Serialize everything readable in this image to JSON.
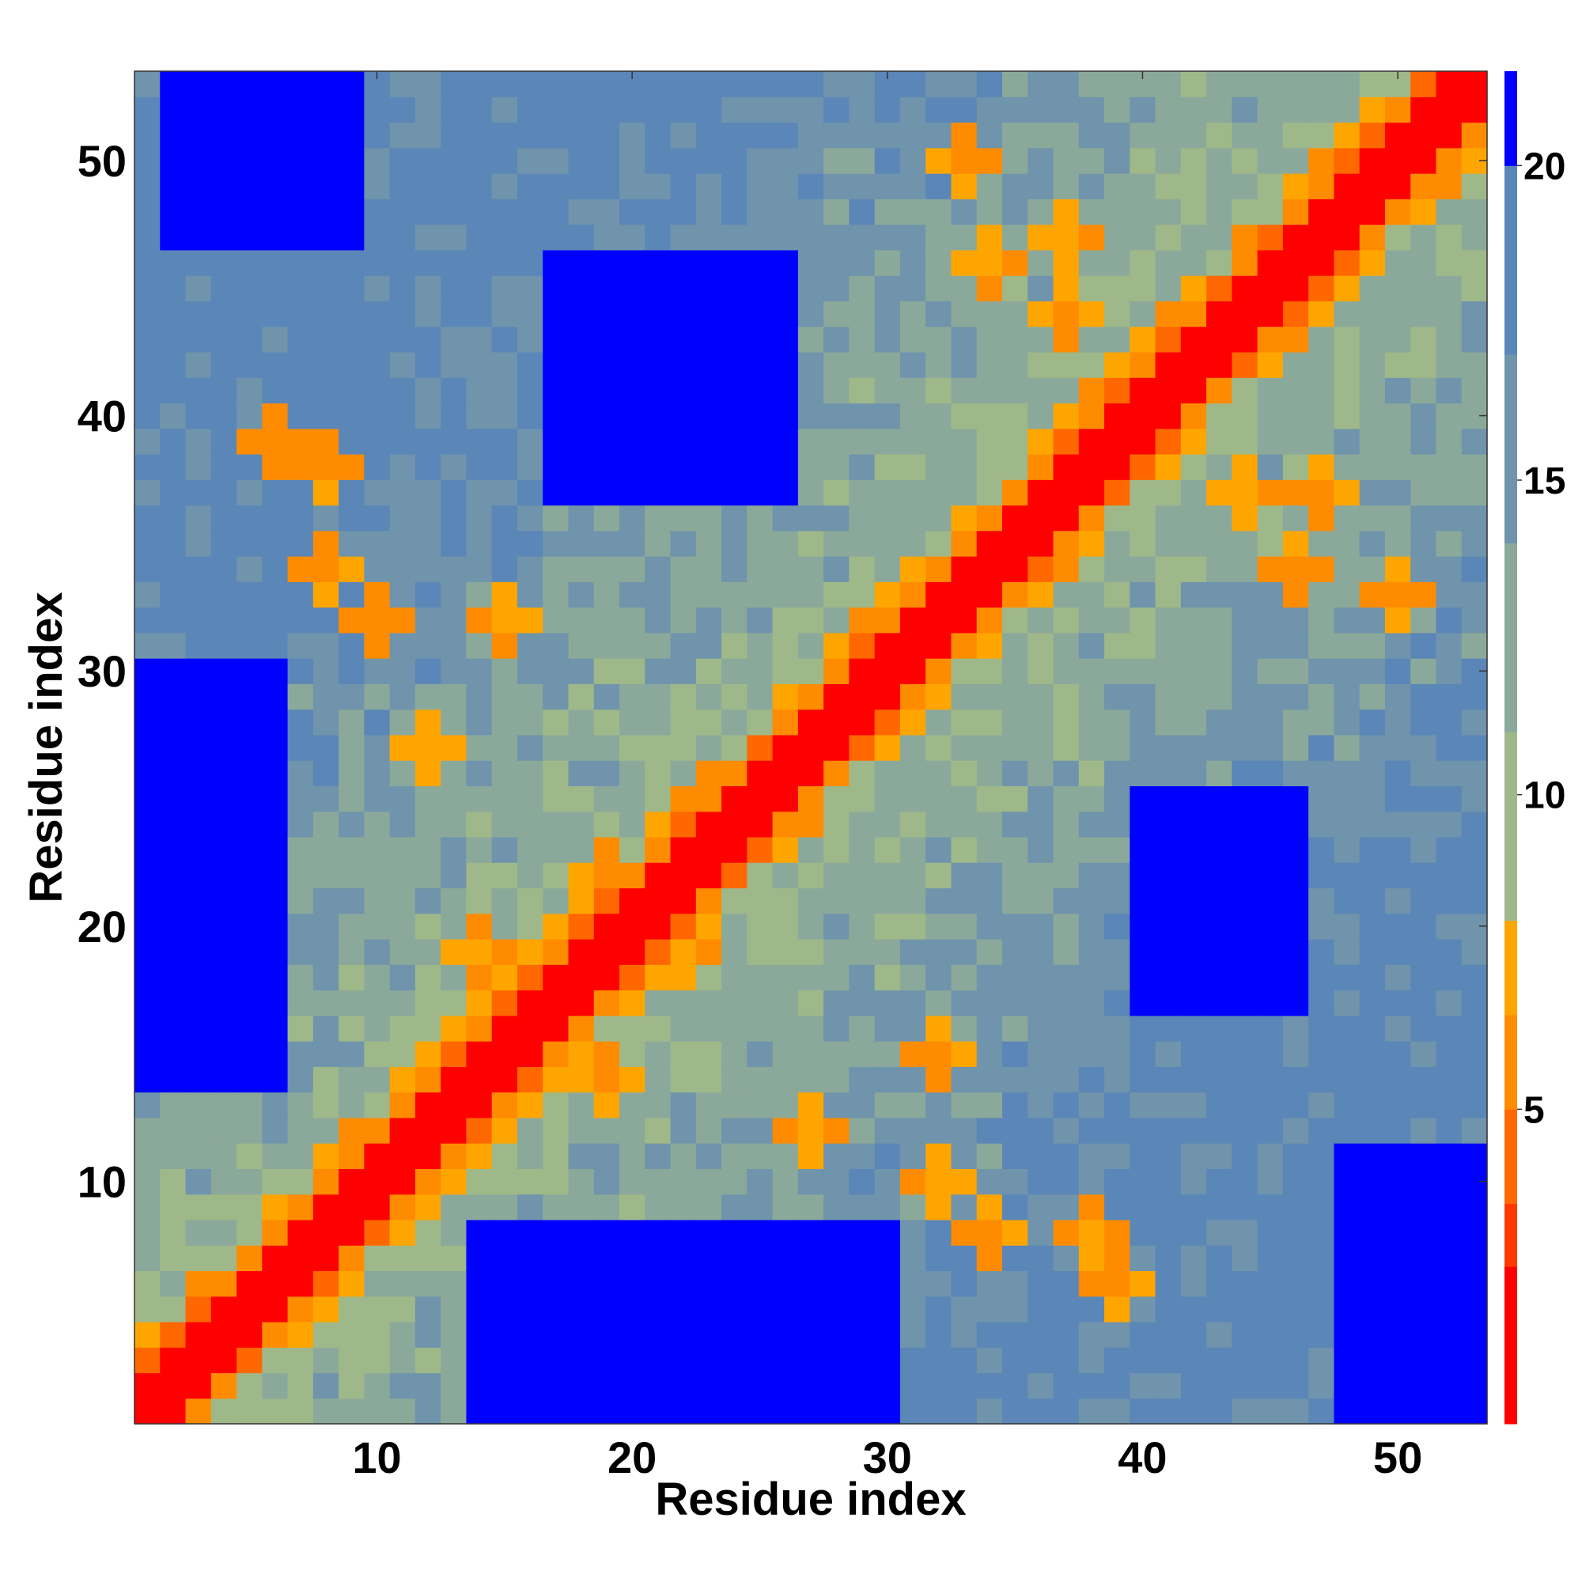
{
  "chart_data": {
    "type": "heatmap",
    "title": "",
    "xlabel": "Residue index",
    "ylabel": "Residue index",
    "n": 53,
    "xlim": [
      0.5,
      53.5
    ],
    "ylim": [
      0.5,
      53.5
    ],
    "x_ticks": [
      10,
      20,
      30,
      40,
      50
    ],
    "y_ticks": [
      10,
      20,
      30,
      40,
      50
    ],
    "colorbar": {
      "range": [
        0,
        21.5
      ],
      "ticks": [
        5,
        10,
        15,
        20
      ],
      "tick_labels": [
        "5",
        "10",
        "15",
        "20"
      ],
      "color_bins": [
        {
          "min": 0,
          "max": 2.5,
          "color": "#ff0000"
        },
        {
          "min": 2.5,
          "max": 3.5,
          "color": "#ff3800"
        },
        {
          "min": 3.5,
          "max": 5.0,
          "color": "#ff6800"
        },
        {
          "min": 5.0,
          "max": 6.5,
          "color": "#ff8c00"
        },
        {
          "min": 6.5,
          "max": 8.0,
          "color": "#ffa500"
        },
        {
          "min": 8.0,
          "max": 11.0,
          "color": "#9fb889"
        },
        {
          "min": 11.0,
          "max": 14.0,
          "color": "#8ba99a"
        },
        {
          "min": 14.0,
          "max": 17.0,
          "color": "#6f94ab"
        },
        {
          "min": 17.0,
          "max": 20.0,
          "color": "#5b86b8"
        },
        {
          "min": 20.0,
          "max": 21.5,
          "color": "#0000ff"
        }
      ]
    },
    "blue_regions": [
      {
        "x": [
          1,
          6
        ],
        "y": [
          14,
          30
        ]
      },
      {
        "x": [
          17,
          26
        ],
        "y": [
          37,
          46
        ]
      },
      {
        "x": [
          14,
          30
        ],
        "y": [
          1,
          8
        ]
      },
      {
        "x": [
          40,
          46
        ],
        "y": [
          17,
          25
        ]
      },
      {
        "x": [
          2,
          9
        ],
        "y": [
          47,
          53
        ]
      },
      {
        "x": [
          48,
          53
        ],
        "y": [
          1,
          11
        ]
      }
    ],
    "orange_features": [
      [
        15,
        32
      ],
      [
        32,
        15
      ],
      [
        8,
        38
      ],
      [
        38,
        8
      ],
      [
        44,
        37
      ],
      [
        37,
        44
      ],
      [
        32,
        10
      ],
      [
        10,
        32
      ],
      [
        22,
        19
      ],
      [
        19,
        22
      ],
      [
        37,
        47
      ],
      [
        47,
        37
      ],
      [
        12,
        27
      ],
      [
        27,
        12
      ],
      [
        19,
        14
      ],
      [
        14,
        19
      ],
      [
        34,
        8
      ],
      [
        8,
        34
      ],
      [
        39,
        6
      ],
      [
        6,
        39
      ],
      [
        46,
        34
      ],
      [
        34,
        46
      ],
      [
        50,
        33
      ],
      [
        33,
        50
      ]
    ]
  }
}
